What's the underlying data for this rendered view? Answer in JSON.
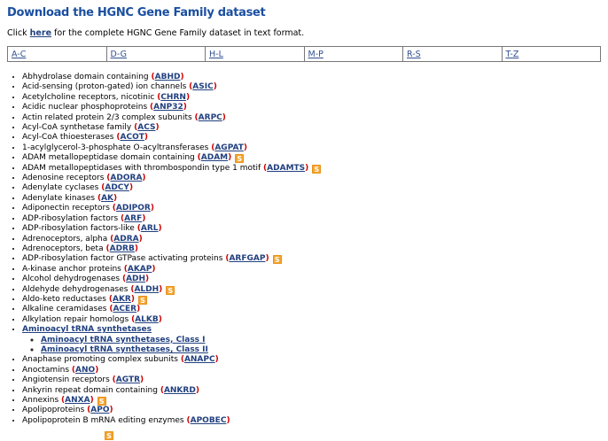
{
  "title": "Download the HGNC Gene Family dataset",
  "intro": {
    "pre": "Click ",
    "link_text": "here",
    "post": " for the complete HGNC Gene Family dataset in text format."
  },
  "nav_table": [
    "A-C",
    "D-G",
    "H-L",
    "M-P",
    "R-S",
    "T-Z"
  ],
  "families": [
    {
      "name": "Abhydrolase domain containing",
      "symbol": "ABHD"
    },
    {
      "name": "Acid-sensing (proton-gated) ion channels",
      "symbol": "ASIC"
    },
    {
      "name": "Acetylcholine receptors, nicotinic",
      "symbol": "CHRN"
    },
    {
      "name": "Acidic nuclear phosphoproteins",
      "symbol": "ANP32"
    },
    {
      "name": "Actin related protein 2/3 complex subunits",
      "symbol": "ARPC"
    },
    {
      "name": "Acyl-CoA synthetase family",
      "symbol": "ACS"
    },
    {
      "name": "Acyl-CoA thioesterases",
      "symbol": "ACOT"
    },
    {
      "name": "1-acylglycerol-3-phosphate O-acyltransferases",
      "symbol": "AGPAT"
    },
    {
      "name": "ADAM metallopeptidase domain containing",
      "symbol": "ADAM",
      "badge": "S"
    },
    {
      "name": "ADAM metallopeptidases with thrombospondin type 1 motif",
      "symbol": "ADAMTS",
      "badge": "S"
    },
    {
      "name": "Adenosine receptors",
      "symbol": "ADORA"
    },
    {
      "name": "Adenylate cyclases",
      "symbol": "ADCY"
    },
    {
      "name": "Adenylate kinases",
      "symbol": "AK"
    },
    {
      "name": "Adiponectin receptors",
      "symbol": "ADIPOR"
    },
    {
      "name": "ADP-ribosylation factors",
      "symbol": "ARF"
    },
    {
      "name": "ADP-ribosylation factors-like",
      "symbol": "ARL"
    },
    {
      "name": "Adrenoceptors, alpha",
      "symbol": "ADRA"
    },
    {
      "name": "Adrenoceptors, beta",
      "symbol": "ADRB"
    },
    {
      "name": "ADP-ribosylation factor GTPase activating proteins",
      "symbol": "ARFGAP",
      "badge": "S"
    },
    {
      "name": "A-kinase anchor proteins",
      "symbol": "AKAP"
    },
    {
      "name": "Alcohol dehydrogenases",
      "symbol": "ADH"
    },
    {
      "name": "Aldehyde dehydrogenases",
      "symbol": "ALDH",
      "badge": "S"
    },
    {
      "name": "Aldo-keto reductases",
      "symbol": "AKR",
      "badge": "S"
    },
    {
      "name": "Alkaline ceramidases",
      "symbol": "ACER"
    },
    {
      "name": "Alkylation repair homologs",
      "symbol": "ALKB"
    },
    {
      "name": "Aminoacyl tRNA synthetases",
      "name_is_link": true,
      "children": [
        {
          "name": "Aminoacyl tRNA synthetases, Class I",
          "name_is_link": true
        },
        {
          "name": "Aminoacyl tRNA synthetases, Class II",
          "name_is_link": true
        }
      ]
    },
    {
      "name": "Anaphase promoting complex subunits",
      "symbol": "ANAPC"
    },
    {
      "name": "Anoctamins",
      "symbol": "ANO"
    },
    {
      "name": "Angiotensin receptors",
      "symbol": "AGTR"
    },
    {
      "name": "Ankyrin repeat domain containing",
      "symbol": "ANKRD"
    },
    {
      "name": "Annexins",
      "symbol": "ANXA",
      "badge": "S"
    },
    {
      "name": "Apolipoproteins",
      "symbol": "APO"
    },
    {
      "name": "Apolipoprotein B mRNA editing enzymes",
      "symbol": "APOBEC"
    }
  ],
  "cutoff_badge": "S",
  "colors": {
    "title_blue": "#1b4fa0",
    "link_navy": "#21407f",
    "paren_red": "#cc0000",
    "badge_orange": "#f5a42e",
    "table_border": "#777777"
  }
}
